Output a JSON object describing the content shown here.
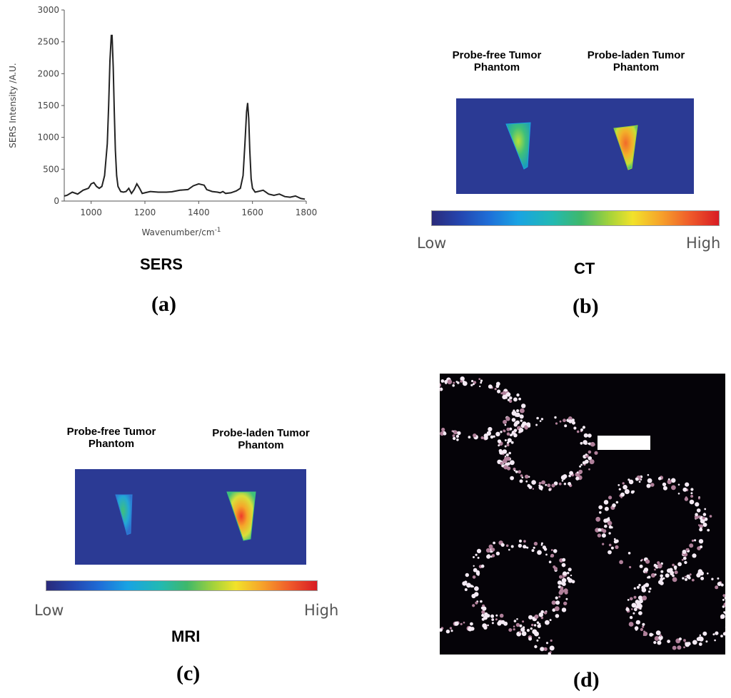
{
  "panels": {
    "a": {
      "modality": "SERS",
      "label": "(a)"
    },
    "b": {
      "modality": "CT",
      "label": "(b)",
      "phantom_left": [
        "Probe-free Tumor",
        "Phantom"
      ],
      "phantom_right": [
        "Probe-laden Tumor",
        "Phantom"
      ],
      "colorbar_low": "Low",
      "colorbar_high": "High"
    },
    "c": {
      "modality": "MRI",
      "label": "(c)",
      "phantom_left": [
        "Probe-free Tumor",
        "Phantom"
      ],
      "phantom_right": [
        "Probe-laden Tumor",
        "Phantom"
      ],
      "colorbar_low": "Low",
      "colorbar_high": "High"
    },
    "d": {
      "label": "(d)"
    }
  },
  "chart_data": {
    "type": "line",
    "title": "",
    "xlabel": "Wavenumber/cm",
    "xlabel_superscript": "-1",
    "ylabel": "SERS Intensity /A.U.",
    "xlim": [
      900,
      1800
    ],
    "ylim": [
      0,
      3000
    ],
    "xticks": [
      1000,
      1200,
      1400,
      1600,
      1800
    ],
    "yticks": [
      0,
      500,
      1000,
      1500,
      2000,
      2500,
      3000
    ],
    "series": [
      {
        "x": [
          900,
          910,
          930,
          950,
          970,
          990,
          1000,
          1010,
          1020,
          1030,
          1040,
          1050,
          1060,
          1065,
          1070,
          1075,
          1078,
          1082,
          1086,
          1090,
          1095,
          1100,
          1110,
          1120,
          1130,
          1140,
          1150,
          1160,
          1170,
          1180,
          1190,
          1200,
          1220,
          1250,
          1280,
          1300,
          1330,
          1360,
          1380,
          1400,
          1420,
          1430,
          1450,
          1470,
          1480,
          1490,
          1500,
          1520,
          1540,
          1555,
          1565,
          1572,
          1578,
          1582,
          1586,
          1590,
          1595,
          1600,
          1610,
          1620,
          1640,
          1660,
          1680,
          1700,
          1720,
          1740,
          1760,
          1780,
          1795
        ],
        "y": [
          80,
          90,
          140,
          110,
          170,
          200,
          270,
          290,
          230,
          200,
          230,
          400,
          900,
          1500,
          2200,
          2600,
          2600,
          2100,
          1400,
          800,
          400,
          230,
          150,
          140,
          150,
          200,
          120,
          180,
          270,
          200,
          120,
          130,
          150,
          140,
          140,
          145,
          170,
          180,
          240,
          270,
          250,
          180,
          150,
          140,
          130,
          150,
          120,
          130,
          160,
          200,
          400,
          900,
          1400,
          1540,
          1300,
          800,
          350,
          200,
          140,
          150,
          170,
          110,
          90,
          110,
          70,
          60,
          80,
          40,
          30
        ]
      }
    ]
  }
}
